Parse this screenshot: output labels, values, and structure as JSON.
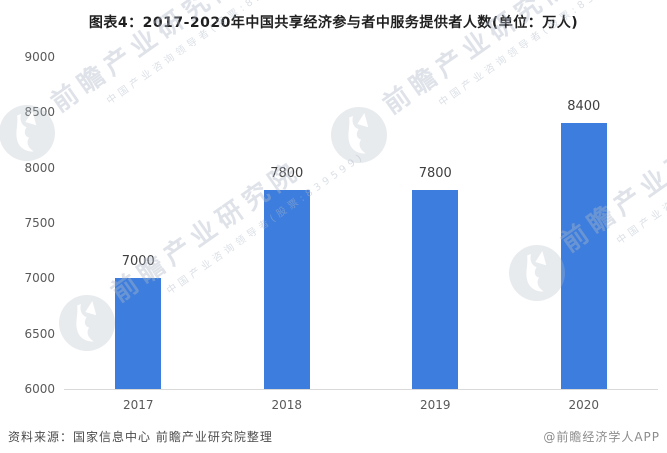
{
  "title": "图表4：2017-2020年中国共享经济参与者中服务提供者人数(单位：万人)",
  "chart_data": {
    "type": "bar",
    "categories": [
      "2017",
      "2018",
      "2019",
      "2020"
    ],
    "values": [
      7000,
      7800,
      7800,
      8400
    ],
    "title": "图表4：2017-2020年中国共享经济参与者中服务提供者人数(单位：万人)",
    "xlabel": "",
    "ylabel": "",
    "unit": "万人",
    "ylim": [
      6000,
      9000
    ],
    "yticks": [
      6000,
      6500,
      7000,
      7500,
      8000,
      8500,
      9000
    ],
    "grid": false,
    "legend": false,
    "bar_color": "#3d7ddd",
    "axis_line_color": "#d9d9d9",
    "value_labels": [
      "7000",
      "7800",
      "7800",
      "8400"
    ]
  },
  "footer": {
    "source": "资料来源：国家信息中心 前瞻产业研究院整理",
    "credit": "@前瞻经济学人APP"
  },
  "watermark": {
    "big_text": "前瞻产业研究院",
    "small_text": "中国产业咨询领导者(股票:839599)"
  }
}
